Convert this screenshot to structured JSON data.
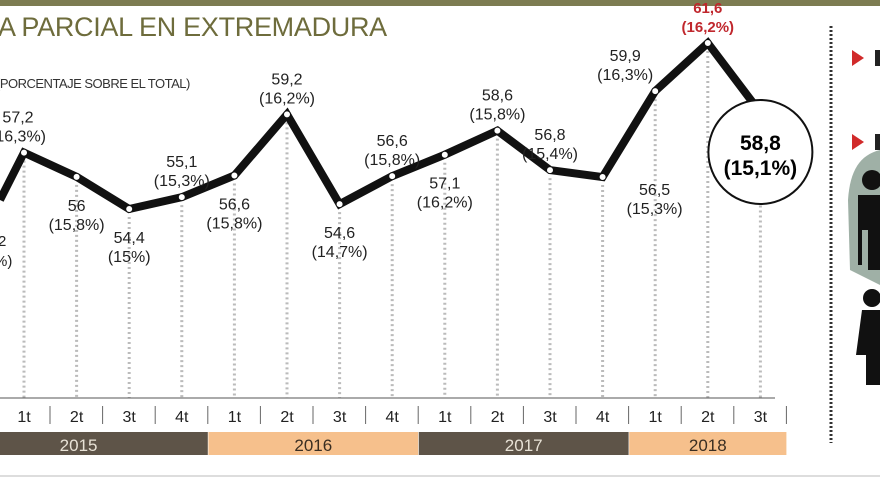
{
  "chart_data": {
    "type": "line",
    "title": "A PARCIAL EN EXTREMADURA",
    "subtitle": "(PORCENTAJE SOBRE EL TOTAL)",
    "partial_left_label": [
      "2",
      "%)"
    ],
    "x": [
      "1t",
      "2t",
      "3t",
      "4t",
      "1t",
      "2t",
      "3t",
      "4t",
      "1t",
      "2t",
      "3t",
      "4t",
      "1t",
      "2t",
      "3t"
    ],
    "years": [
      {
        "label": "2015",
        "quarters": 4
      },
      {
        "label": "2016",
        "quarters": 4
      },
      {
        "label": "2017",
        "quarters": 4
      },
      {
        "label": "2018",
        "quarters": 3
      }
    ],
    "values": [
      57.2,
      56,
      54.4,
      55.1,
      56.6,
      59.2,
      54.6,
      56.6,
      57.1,
      58.6,
      56.8,
      56.5,
      59.9,
      61.6,
      58.8
    ],
    "labels": [
      [
        "57,2",
        "(16,3%)"
      ],
      [
        "56",
        "(15,8%)"
      ],
      [
        "54,4",
        "(15%)"
      ],
      [
        "55,1",
        "(15,3%)"
      ],
      [
        "56,6",
        "(15,8%)"
      ],
      [
        "59,2",
        "(16,2%)"
      ],
      [
        "54,6",
        "(14,7%)"
      ],
      [
        "56,6",
        "(15,8%)"
      ],
      [
        "57,1",
        "(16,2%)"
      ],
      [
        "58,6",
        "(15,8%)"
      ],
      [
        "56,8",
        "(15,4%)"
      ],
      [
        "56,5",
        "(15,3%)"
      ],
      [
        "59,9",
        "(16,3%)"
      ],
      [
        "61,6",
        "(16,2%)"
      ],
      [
        "58,8",
        "(15,1%)"
      ]
    ],
    "highlight_max_index": 13,
    "current_index": 14,
    "colors": {
      "line": "#111111",
      "max": "#c0272d",
      "year_dark": "#5e5448",
      "year_light": "#f6c08c",
      "title": "#6e6c3c"
    }
  }
}
